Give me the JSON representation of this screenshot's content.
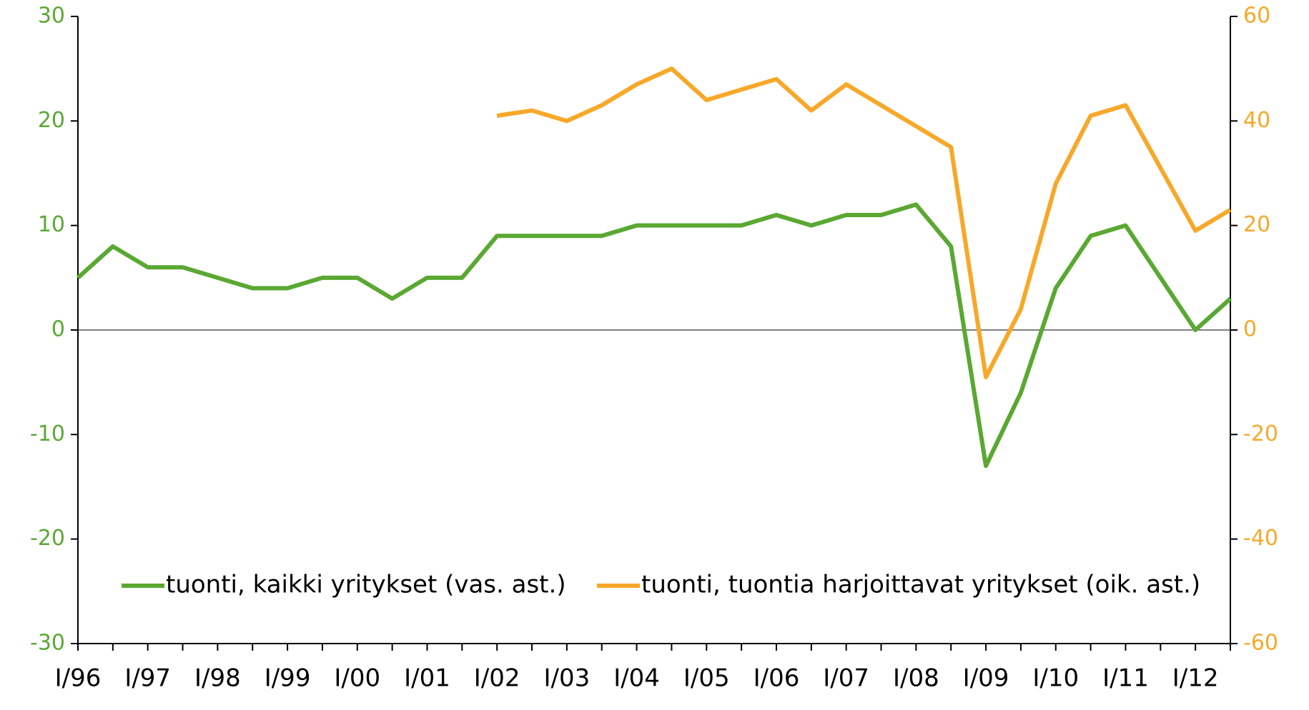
{
  "chart_data": {
    "type": "line",
    "categories": [
      "I/96",
      null,
      "I/97",
      null,
      "I/98",
      null,
      "I/99",
      null,
      "I/00",
      null,
      "I/01",
      null,
      "I/02",
      null,
      "I/03",
      null,
      "I/04",
      null,
      "I/05",
      null,
      "I/06",
      null,
      "I/07",
      null,
      "I/08",
      null,
      "I/09",
      null,
      "I/10",
      null,
      "I/11",
      null,
      "I/12",
      null
    ],
    "series": [
      {
        "name": "tuonti, kaikki yritykset (vas. ast.)",
        "color": "#5aa832",
        "axis": "y",
        "values": [
          5,
          8,
          6,
          6,
          5,
          4,
          4,
          5,
          5,
          3,
          5,
          5,
          9,
          9,
          9,
          9,
          10,
          10,
          10,
          10,
          11,
          10,
          11,
          11,
          12,
          8,
          -13,
          -6,
          4,
          9,
          10,
          5,
          0,
          3
        ]
      },
      {
        "name": "tuonti, tuontia harjoittavat yritykset (oik. ast.)",
        "color": "#f7a829",
        "axis": "y2",
        "values": [
          null,
          null,
          null,
          null,
          null,
          null,
          null,
          null,
          null,
          null,
          null,
          null,
          41,
          42,
          40,
          43,
          47,
          50,
          44,
          46,
          48,
          42,
          47,
          43,
          39,
          35,
          -9,
          4,
          28,
          41,
          43,
          31,
          19,
          23
        ]
      }
    ],
    "ylim": [
      -30,
      30
    ],
    "yticks": [
      -30,
      -20,
      -10,
      0,
      10,
      20,
      30
    ],
    "y2lim": [
      -60,
      60
    ],
    "y2ticks": [
      -60,
      -40,
      -20,
      0,
      20,
      40,
      60
    ],
    "legend": "lower center"
  }
}
